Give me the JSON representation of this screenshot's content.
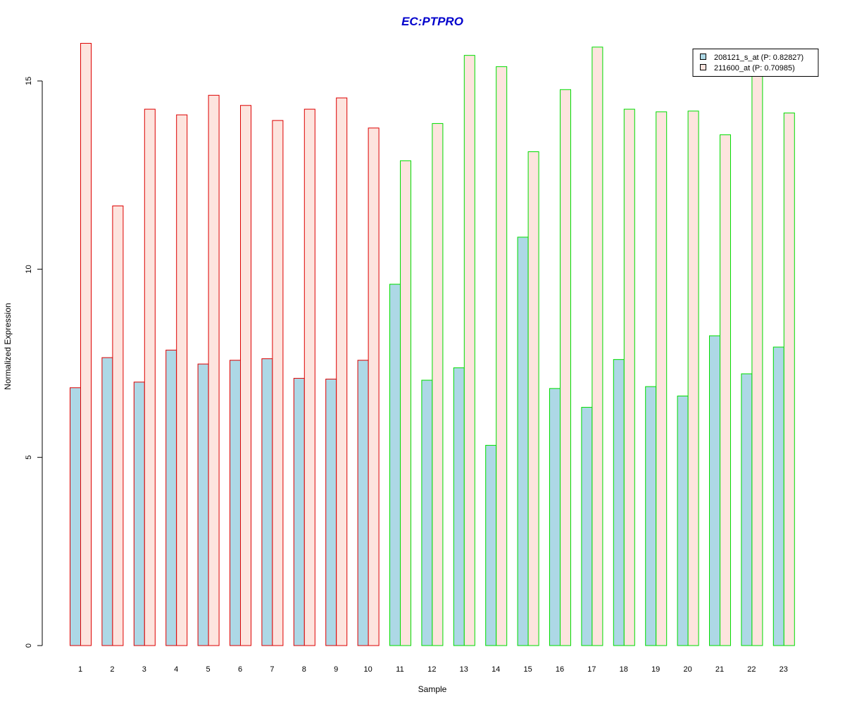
{
  "chart_data": {
    "type": "bar",
    "title": "EC:PTPRO",
    "xlabel": "Sample",
    "ylabel": "Normalized Expression",
    "ylim": [
      0,
      15
    ],
    "yticks": [
      "0",
      "5",
      "10",
      "15"
    ],
    "categories": [
      "1",
      "2",
      "3",
      "4",
      "5",
      "6",
      "7",
      "8",
      "9",
      "10",
      "11",
      "12",
      "13",
      "14",
      "15",
      "16",
      "17",
      "18",
      "19",
      "20",
      "21",
      "22",
      "23"
    ],
    "group_border_colors": [
      "#dd0000",
      "#dd0000",
      "#dd0000",
      "#dd0000",
      "#dd0000",
      "#dd0000",
      "#dd0000",
      "#dd0000",
      "#dd0000",
      "#dd0000",
      "#00dd00",
      "#00dd00",
      "#00dd00",
      "#00dd00",
      "#00dd00",
      "#00dd00",
      "#00dd00",
      "#00dd00",
      "#00dd00",
      "#00dd00",
      "#00dd00",
      "#00dd00",
      "#00dd00"
    ],
    "series": [
      {
        "name": "208121_s_at (P: 0.82827)",
        "fill": "#add8e6",
        "values": [
          6.85,
          7.65,
          7.0,
          7.85,
          7.48,
          7.58,
          7.62,
          7.1,
          7.08,
          7.58,
          9.6,
          7.05,
          7.38,
          5.32,
          10.85,
          6.83,
          6.33,
          7.6,
          6.88,
          6.63,
          8.23,
          7.22,
          7.93
        ]
      },
      {
        "name": "211600_at (P: 0.70985)",
        "fill": "#fde4de",
        "values": [
          16.0,
          11.68,
          14.25,
          14.1,
          14.62,
          14.35,
          13.95,
          14.25,
          14.55,
          13.75,
          12.88,
          13.87,
          15.68,
          15.38,
          13.12,
          14.77,
          15.9,
          14.25,
          14.18,
          14.2,
          13.57,
          15.3,
          14.15
        ]
      }
    ],
    "legend_position": "top-right",
    "grid": false
  }
}
